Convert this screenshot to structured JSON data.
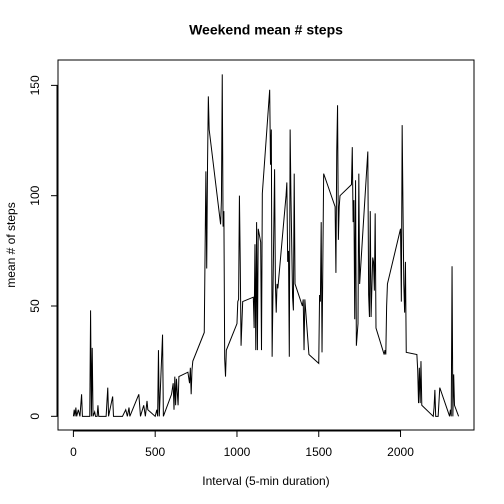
{
  "chart_data": {
    "type": "line",
    "title": "Weekend mean # steps",
    "x_label": "Interval (5-min duration)",
    "y_label": "mean # of steps",
    "x": [
      0,
      5,
      10,
      15,
      20,
      30,
      40,
      50,
      55,
      100,
      105,
      110,
      115,
      120,
      130,
      135,
      145,
      150,
      155,
      200,
      210,
      215,
      240,
      245,
      300,
      320,
      330,
      340,
      345,
      400,
      410,
      430,
      440,
      450,
      455,
      500,
      510,
      515,
      520,
      525,
      545,
      550,
      600,
      610,
      615,
      620,
      625,
      630,
      640,
      645,
      700,
      710,
      715,
      720,
      725,
      730,
      800,
      810,
      815,
      820,
      825,
      830,
      900,
      905,
      910,
      915,
      920,
      925,
      930,
      935,
      1000,
      1005,
      1010,
      1015,
      1020,
      1025,
      1035,
      1100,
      1105,
      1110,
      1115,
      1120,
      1125,
      1130,
      1145,
      1150,
      1155,
      1200,
      1205,
      1210,
      1215,
      1230,
      1235,
      1240,
      1245,
      1250,
      1300,
      1305,
      1310,
      1315,
      1320,
      1325,
      1330,
      1340,
      1345,
      1350,
      1355,
      1400,
      1405,
      1410,
      1415,
      1440,
      1500,
      1505,
      1510,
      1515,
      1520,
      1530,
      1600,
      1605,
      1610,
      1615,
      1620,
      1625,
      1630,
      1700,
      1705,
      1710,
      1715,
      1720,
      1725,
      1730,
      1740,
      1745,
      1750,
      1800,
      1805,
      1810,
      1815,
      1820,
      1830,
      1835,
      1840,
      1845,
      1850,
      1900,
      1905,
      1910,
      1915,
      1920,
      2000,
      2005,
      2010,
      2015,
      2020,
      2025,
      2030,
      2035,
      2100,
      2105,
      2110,
      2115,
      2120,
      2125,
      2130,
      2200,
      2205,
      2210,
      2215,
      2230,
      2240,
      2300,
      2305,
      2310,
      2315,
      2320,
      2325,
      2330,
      2355
    ],
    "values": [
      0,
      3,
      0,
      4,
      0,
      3,
      0,
      10,
      0,
      0,
      48,
      0,
      31,
      0,
      2,
      0,
      0,
      5,
      0,
      0,
      13,
      0,
      9,
      0,
      0,
      3,
      0,
      4,
      0,
      10,
      0,
      5,
      0,
      7,
      3,
      0,
      3,
      0,
      30,
      0,
      37,
      0,
      10,
      15,
      3,
      18,
      5,
      17,
      5,
      18,
      20,
      15,
      22,
      10,
      21,
      25,
      38,
      111,
      67,
      114,
      145,
      130,
      87,
      98,
      155,
      86,
      93,
      26,
      18,
      30,
      42,
      52,
      53,
      100,
      70,
      32,
      52,
      54,
      40,
      78,
      30,
      88,
      30,
      85,
      79,
      30,
      101,
      148,
      114,
      130,
      27,
      112,
      60,
      47,
      60,
      58,
      100,
      106,
      70,
      75,
      27,
      130,
      100,
      54,
      48,
      110,
      60,
      50,
      53,
      30,
      53,
      28,
      24,
      55,
      52,
      88,
      29,
      110,
      95,
      65,
      120,
      141,
      80,
      95,
      100,
      105,
      122,
      88,
      98,
      44,
      107,
      32,
      42,
      110,
      60,
      120,
      55,
      45,
      93,
      45,
      72,
      70,
      57,
      92,
      40,
      28,
      30,
      28,
      50,
      60,
      85,
      52,
      132,
      95,
      60,
      47,
      70,
      29,
      28,
      21,
      6,
      22,
      6,
      25,
      5,
      0,
      4,
      12,
      0,
      0,
      13,
      0,
      3,
      0,
      68,
      0,
      19,
      5,
      0
    ],
    "color": "#000000",
    "xlim": [
      -94.2,
      2449.2
    ],
    "ylim": [
      -6.2,
      161.5
    ],
    "xticks": [
      0,
      500,
      1000,
      1500,
      2000
    ],
    "yticks": [
      0,
      50,
      100,
      150
    ]
  }
}
